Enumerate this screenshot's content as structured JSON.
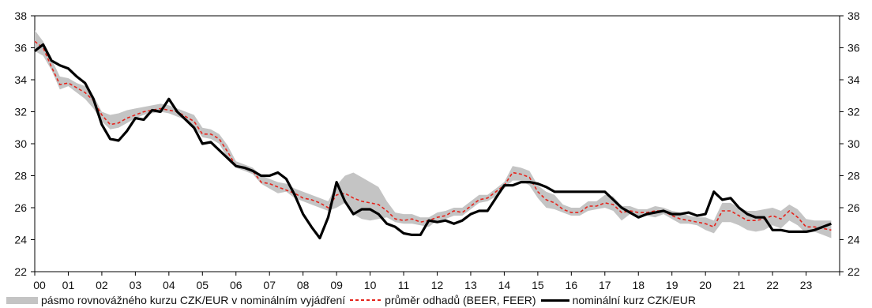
{
  "chart_data": {
    "type": "line",
    "x_tick_labels": [
      "00",
      "01",
      "02",
      "03",
      "04",
      "05",
      "06",
      "07",
      "08",
      "09",
      "10",
      "11",
      "12",
      "13",
      "14",
      "15",
      "16",
      "17",
      "18",
      "19",
      "20",
      "21",
      "22",
      "23"
    ],
    "x_range": [
      2000,
      2024
    ],
    "ylim": [
      22,
      38
    ],
    "y_ticks": [
      22,
      24,
      26,
      28,
      30,
      32,
      34,
      36,
      38
    ],
    "y_axis_both_sides": true,
    "grid": false,
    "legend_position": "bottom",
    "colors": {
      "band": "#c4c4c4",
      "average": "#e5231b",
      "nominal": "#000000"
    },
    "series": [
      {
        "name": "pásmo rovnovážného kurzu CZK/EUR v nominálním vyjádření",
        "kind": "band",
        "x": [
          2000.0,
          2000.25,
          2000.5,
          2000.75,
          2001.0,
          2001.25,
          2001.5,
          2001.75,
          2002.0,
          2002.25,
          2002.5,
          2002.75,
          2003.0,
          2003.25,
          2003.5,
          2003.75,
          2004.0,
          2004.25,
          2004.5,
          2004.75,
          2005.0,
          2005.25,
          2005.5,
          2005.75,
          2006.0,
          2006.25,
          2006.5,
          2006.75,
          2007.0,
          2007.25,
          2007.5,
          2007.75,
          2008.0,
          2008.25,
          2008.5,
          2008.75,
          2009.0,
          2009.25,
          2009.5,
          2009.75,
          2010.0,
          2010.25,
          2010.5,
          2010.75,
          2011.0,
          2011.25,
          2011.5,
          2011.75,
          2012.0,
          2012.25,
          2012.5,
          2012.75,
          2013.0,
          2013.25,
          2013.5,
          2013.75,
          2014.0,
          2014.25,
          2014.5,
          2014.75,
          2015.0,
          2015.25,
          2015.5,
          2015.75,
          2016.0,
          2016.25,
          2016.5,
          2016.75,
          2017.0,
          2017.25,
          2017.5,
          2017.75,
          2018.0,
          2018.25,
          2018.5,
          2018.75,
          2019.0,
          2019.25,
          2019.5,
          2019.75,
          2020.0,
          2020.25,
          2020.5,
          2020.75,
          2021.0,
          2021.25,
          2021.5,
          2021.75,
          2022.0,
          2022.25,
          2022.5,
          2022.75,
          2023.0,
          2023.25,
          2023.5,
          2023.75
        ],
        "low": [
          35.8,
          35.5,
          34.6,
          33.4,
          33.6,
          33.2,
          32.8,
          32.2,
          31.4,
          30.9,
          31.0,
          31.3,
          31.6,
          31.8,
          31.9,
          32.0,
          31.9,
          31.7,
          31.5,
          31.1,
          30.4,
          30.3,
          30.0,
          29.1,
          28.5,
          28.3,
          28.1,
          27.5,
          27.2,
          26.9,
          27.0,
          26.6,
          26.4,
          26.2,
          26.0,
          25.8,
          26.0,
          26.3,
          25.6,
          25.3,
          25.2,
          25.3,
          25.4,
          25.1,
          25.0,
          25.0,
          24.9,
          24.8,
          25.2,
          25.3,
          25.5,
          25.5,
          25.9,
          26.3,
          26.4,
          26.7,
          27.2,
          27.7,
          27.7,
          27.4,
          26.6,
          26.0,
          25.9,
          25.7,
          25.5,
          25.5,
          25.8,
          25.9,
          26.0,
          25.8,
          25.2,
          25.6,
          25.5,
          25.5,
          25.4,
          25.6,
          25.3,
          25.0,
          25.0,
          24.9,
          24.6,
          24.4,
          25.1,
          25.1,
          24.9,
          24.6,
          24.5,
          24.6,
          24.9,
          24.7,
          25.2,
          24.9,
          24.4,
          24.5,
          24.3,
          24.1
        ],
        "high": [
          37.1,
          36.4,
          35.3,
          34.2,
          34.1,
          33.8,
          33.6,
          33.0,
          32.0,
          31.8,
          31.9,
          32.1,
          32.2,
          32.3,
          32.4,
          32.5,
          32.4,
          32.2,
          32.0,
          31.8,
          31.0,
          30.9,
          30.6,
          29.9,
          28.9,
          28.7,
          28.5,
          28.0,
          27.8,
          27.6,
          27.5,
          27.2,
          27.0,
          26.8,
          26.6,
          26.4,
          27.4,
          28.0,
          28.2,
          27.9,
          27.6,
          27.3,
          26.4,
          25.7,
          25.6,
          25.6,
          25.4,
          25.4,
          25.7,
          25.8,
          26.0,
          26.0,
          26.4,
          26.8,
          26.8,
          27.2,
          27.6,
          28.6,
          28.5,
          28.3,
          27.4,
          27.0,
          26.8,
          26.2,
          26.0,
          26.0,
          26.4,
          26.4,
          26.8,
          26.7,
          26.1,
          26.1,
          25.9,
          25.9,
          26.1,
          26.0,
          25.8,
          25.7,
          25.5,
          25.4,
          25.4,
          25.2,
          26.3,
          26.3,
          26.0,
          25.8,
          25.8,
          25.9,
          26.0,
          25.8,
          26.2,
          25.9,
          25.3,
          25.2,
          25.2,
          25.2
        ]
      },
      {
        "name": "průměr odhadů (BEER, FEER)",
        "kind": "dashed",
        "x": [
          2000.0,
          2000.25,
          2000.5,
          2000.75,
          2001.0,
          2001.25,
          2001.5,
          2001.75,
          2002.0,
          2002.25,
          2002.5,
          2002.75,
          2003.0,
          2003.25,
          2003.5,
          2003.75,
          2004.0,
          2004.25,
          2004.5,
          2004.75,
          2005.0,
          2005.25,
          2005.5,
          2005.75,
          2006.0,
          2006.25,
          2006.5,
          2006.75,
          2007.0,
          2007.25,
          2007.5,
          2007.75,
          2008.0,
          2008.25,
          2008.5,
          2008.75,
          2009.0,
          2009.25,
          2009.5,
          2009.75,
          2010.0,
          2010.25,
          2010.5,
          2010.75,
          2011.0,
          2011.25,
          2011.5,
          2011.75,
          2012.0,
          2012.25,
          2012.5,
          2012.75,
          2013.0,
          2013.25,
          2013.5,
          2013.75,
          2014.0,
          2014.25,
          2014.5,
          2014.75,
          2015.0,
          2015.25,
          2015.5,
          2015.75,
          2016.0,
          2016.25,
          2016.5,
          2016.75,
          2017.0,
          2017.25,
          2017.5,
          2017.75,
          2018.0,
          2018.25,
          2018.5,
          2018.75,
          2019.0,
          2019.25,
          2019.5,
          2019.75,
          2020.0,
          2020.25,
          2020.5,
          2020.75,
          2021.0,
          2021.25,
          2021.5,
          2021.75,
          2022.0,
          2022.25,
          2022.5,
          2022.75,
          2023.0,
          2023.25,
          2023.5,
          2023.75
        ],
        "y": [
          36.4,
          36.0,
          34.8,
          33.7,
          33.8,
          33.5,
          33.2,
          32.7,
          31.8,
          31.2,
          31.3,
          31.6,
          31.8,
          32.0,
          32.1,
          32.2,
          32.1,
          32.0,
          31.7,
          31.4,
          30.6,
          30.6,
          30.3,
          29.5,
          28.6,
          28.5,
          28.3,
          27.6,
          27.5,
          27.3,
          27.1,
          26.9,
          26.6,
          26.5,
          26.3,
          26.0,
          26.8,
          26.9,
          26.6,
          26.4,
          26.3,
          26.2,
          25.8,
          25.3,
          25.2,
          25.3,
          25.1,
          25.2,
          25.4,
          25.5,
          25.8,
          25.7,
          26.1,
          26.5,
          26.6,
          27.0,
          27.4,
          28.2,
          28.1,
          27.9,
          27.0,
          26.5,
          26.3,
          25.9,
          25.7,
          25.7,
          26.1,
          26.1,
          26.3,
          26.2,
          25.7,
          25.8,
          25.7,
          25.7,
          25.8,
          25.8,
          25.5,
          25.3,
          25.2,
          25.1,
          25.0,
          24.8,
          25.8,
          25.8,
          25.5,
          25.2,
          25.2,
          25.3,
          25.5,
          25.3,
          25.8,
          25.4,
          24.8,
          24.8,
          24.7,
          24.6
        ]
      },
      {
        "name": "nominální kurz CZK/EUR",
        "kind": "solid",
        "x": [
          2000.0,
          2000.25,
          2000.5,
          2000.75,
          2001.0,
          2001.25,
          2001.5,
          2001.75,
          2002.0,
          2002.25,
          2002.5,
          2002.75,
          2003.0,
          2003.25,
          2003.5,
          2003.75,
          2004.0,
          2004.25,
          2004.5,
          2004.75,
          2005.0,
          2005.25,
          2005.5,
          2005.75,
          2006.0,
          2006.25,
          2006.5,
          2006.75,
          2007.0,
          2007.25,
          2007.5,
          2007.75,
          2008.0,
          2008.25,
          2008.5,
          2008.75,
          2009.0,
          2009.25,
          2009.5,
          2009.75,
          2010.0,
          2010.25,
          2010.5,
          2010.75,
          2011.0,
          2011.25,
          2011.5,
          2011.75,
          2012.0,
          2012.25,
          2012.5,
          2012.75,
          2013.0,
          2013.25,
          2013.5,
          2013.75,
          2014.0,
          2014.25,
          2014.5,
          2014.75,
          2015.0,
          2015.25,
          2015.5,
          2015.75,
          2016.0,
          2016.25,
          2016.5,
          2016.75,
          2017.0,
          2017.25,
          2017.5,
          2017.75,
          2018.0,
          2018.25,
          2018.5,
          2018.75,
          2019.0,
          2019.25,
          2019.5,
          2019.75,
          2020.0,
          2020.25,
          2020.5,
          2020.75,
          2021.0,
          2021.25,
          2021.5,
          2021.75,
          2022.0,
          2022.25,
          2022.5,
          2022.75,
          2023.0,
          2023.25,
          2023.5,
          2023.75
        ],
        "y": [
          35.8,
          36.2,
          35.2,
          34.9,
          34.7,
          34.2,
          33.8,
          32.8,
          31.2,
          30.3,
          30.2,
          30.8,
          31.6,
          31.5,
          32.1,
          32.0,
          32.8,
          32.0,
          31.5,
          31.0,
          30.0,
          30.1,
          29.6,
          29.1,
          28.6,
          28.5,
          28.3,
          28.0,
          28.0,
          28.2,
          27.8,
          26.8,
          25.6,
          24.8,
          24.1,
          25.4,
          27.6,
          26.4,
          25.6,
          25.9,
          25.9,
          25.6,
          25.0,
          24.8,
          24.4,
          24.3,
          24.3,
          25.2,
          25.1,
          25.2,
          25.0,
          25.2,
          25.6,
          25.8,
          25.8,
          26.6,
          27.4,
          27.4,
          27.6,
          27.6,
          27.5,
          27.3,
          27.0,
          27.0,
          27.0,
          27.0,
          27.0,
          27.0,
          27.0,
          26.5,
          26.0,
          25.7,
          25.4,
          25.6,
          25.7,
          25.8,
          25.6,
          25.6,
          25.7,
          25.5,
          25.6,
          27.0,
          26.5,
          26.6,
          26.0,
          25.6,
          25.4,
          25.4,
          24.6,
          24.6,
          24.5,
          24.5,
          24.5,
          24.6,
          24.8,
          25.0
        ]
      }
    ]
  }
}
